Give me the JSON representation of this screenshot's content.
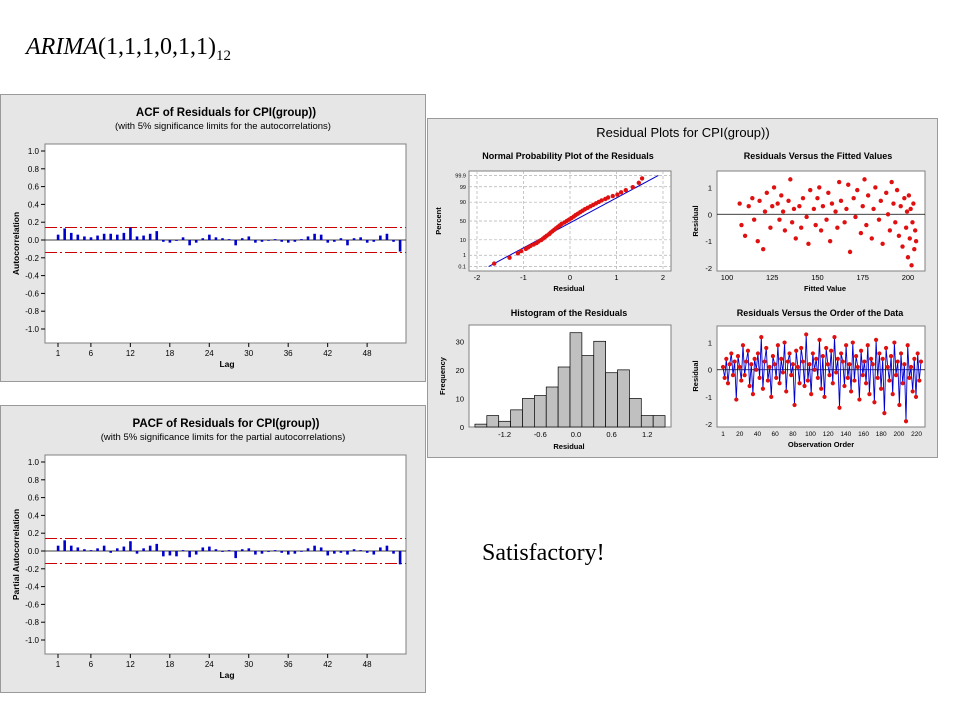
{
  "slide": {
    "title_main": "ARIMA",
    "title_args": "(1,1,1,0,1,1)",
    "title_sub": "12",
    "verdict": "Satisfactory!"
  },
  "colors": {
    "bar": "#0000cc",
    "limit": "#cc0000",
    "point": "#e01010",
    "line": "#0000cc",
    "hist": "#c0c0c0"
  },
  "chart_data": [
    {
      "id": "acf",
      "type": "bar",
      "title": "ACF of Residuals for CPI(group))",
      "subtitle": "(with 5% significance limits for the autocorrelations)",
      "xlabel": "Lag",
      "ylabel": "Autocorrelation",
      "ylim": [
        -1.0,
        1.0
      ],
      "yticks": [
        "1.0",
        "0.8",
        "0.6",
        "0.4",
        "0.2",
        "0.0",
        "-0.2",
        "-0.4",
        "-0.6",
        "-0.8",
        "-1.0"
      ],
      "xticks": [
        "1",
        "6",
        "12",
        "18",
        "24",
        "30",
        "36",
        "42",
        "48"
      ],
      "limit": 0.14,
      "lags": [
        1,
        2,
        3,
        4,
        5,
        6,
        7,
        8,
        9,
        10,
        11,
        12,
        13,
        14,
        15,
        16,
        17,
        18,
        19,
        20,
        21,
        22,
        23,
        24,
        25,
        26,
        27,
        28,
        29,
        30,
        31,
        32,
        33,
        34,
        35,
        36,
        37,
        38,
        39,
        40,
        41,
        42,
        43,
        44,
        45,
        46,
        47,
        48,
        49,
        50,
        51,
        52,
        53
      ],
      "values": [
        0.06,
        0.13,
        0.08,
        0.06,
        0.04,
        0.03,
        0.05,
        0.07,
        0.07,
        0.06,
        0.08,
        0.14,
        0.04,
        0.05,
        0.07,
        0.1,
        -0.02,
        -0.03,
        -0.01,
        0.03,
        -0.06,
        -0.03,
        0.02,
        0.06,
        0.03,
        0.02,
        0.01,
        -0.06,
        0.02,
        0.04,
        -0.03,
        -0.02,
        0.0,
        0.01,
        -0.02,
        -0.03,
        -0.02,
        0.01,
        0.04,
        0.07,
        0.06,
        -0.03,
        -0.02,
        0.02,
        -0.06,
        0.02,
        0.03,
        -0.03,
        -0.02,
        0.05,
        0.07,
        -0.02,
        -0.13
      ]
    },
    {
      "id": "pacf",
      "type": "bar",
      "title": "PACF of Residuals for CPI(group))",
      "subtitle": "(with 5% significance limits for the partial autocorrelations)",
      "xlabel": "Lag",
      "ylabel": "Partial Autocorrelation",
      "ylim": [
        -1.0,
        1.0
      ],
      "yticks": [
        "1.0",
        "0.8",
        "0.6",
        "0.4",
        "0.2",
        "0.0",
        "-0.2",
        "-0.4",
        "-0.6",
        "-0.8",
        "-1.0"
      ],
      "xticks": [
        "1",
        "6",
        "12",
        "18",
        "24",
        "30",
        "36",
        "42",
        "48"
      ],
      "limit": 0.14,
      "lags": [
        1,
        2,
        3,
        4,
        5,
        6,
        7,
        8,
        9,
        10,
        11,
        12,
        13,
        14,
        15,
        16,
        17,
        18,
        19,
        20,
        21,
        22,
        23,
        24,
        25,
        26,
        27,
        28,
        29,
        30,
        31,
        32,
        33,
        34,
        35,
        36,
        37,
        38,
        39,
        40,
        41,
        42,
        43,
        44,
        45,
        46,
        47,
        48,
        49,
        50,
        51,
        52,
        53
      ],
      "values": [
        0.06,
        0.12,
        0.06,
        0.04,
        0.02,
        0.01,
        0.03,
        0.06,
        -0.02,
        0.03,
        0.05,
        0.11,
        -0.03,
        0.03,
        0.06,
        0.08,
        -0.06,
        -0.05,
        -0.06,
        0.01,
        -0.07,
        -0.04,
        0.04,
        0.05,
        0.02,
        -0.01,
        0.01,
        -0.08,
        0.02,
        0.03,
        -0.04,
        -0.03,
        -0.01,
        0.01,
        -0.02,
        -0.04,
        -0.03,
        0.0,
        0.03,
        0.06,
        0.04,
        -0.05,
        -0.03,
        -0.02,
        -0.04,
        0.02,
        0.01,
        -0.02,
        -0.04,
        0.04,
        0.06,
        -0.03,
        -0.15
      ]
    },
    {
      "id": "normal-plot",
      "type": "scatter",
      "title": "Normal Probability Plot of the Residuals",
      "xlabel": "Residual",
      "ylabel": "Percent",
      "xlim": [
        -2,
        2
      ],
      "xticks": [
        "-2",
        "-1",
        "0",
        "1",
        "2"
      ],
      "yticks": [
        "99.9",
        "99",
        "90",
        "50",
        "10",
        "1",
        "0.1"
      ],
      "points": [
        [
          -1.63,
          -2.9
        ],
        [
          -1.3,
          -2.5
        ],
        [
          -1.12,
          -2.2
        ],
        [
          -1.05,
          -2.05
        ],
        [
          -0.95,
          -1.9
        ],
        [
          -0.9,
          -1.8
        ],
        [
          -0.85,
          -1.7
        ],
        [
          -0.78,
          -1.6
        ],
        [
          -0.72,
          -1.5
        ],
        [
          -0.68,
          -1.4
        ],
        [
          -0.62,
          -1.3
        ],
        [
          -0.58,
          -1.2
        ],
        [
          -0.54,
          -1.1
        ],
        [
          -0.5,
          -1.0
        ],
        [
          -0.45,
          -0.9
        ],
        [
          -0.42,
          -0.8
        ],
        [
          -0.38,
          -0.7
        ],
        [
          -0.34,
          -0.6
        ],
        [
          -0.3,
          -0.5
        ],
        [
          -0.26,
          -0.4
        ],
        [
          -0.22,
          -0.3
        ],
        [
          -0.18,
          -0.2
        ],
        [
          -0.12,
          -0.1
        ],
        [
          -0.07,
          0.0
        ],
        [
          -0.02,
          0.1
        ],
        [
          0.03,
          0.2
        ],
        [
          0.08,
          0.3
        ],
        [
          0.12,
          0.4
        ],
        [
          0.17,
          0.5
        ],
        [
          0.22,
          0.6
        ],
        [
          0.27,
          0.7
        ],
        [
          0.32,
          0.8
        ],
        [
          0.38,
          0.9
        ],
        [
          0.44,
          1.0
        ],
        [
          0.5,
          1.1
        ],
        [
          0.56,
          1.2
        ],
        [
          0.62,
          1.3
        ],
        [
          0.68,
          1.4
        ],
        [
          0.76,
          1.5
        ],
        [
          0.82,
          1.6
        ],
        [
          0.92,
          1.7
        ],
        [
          1.02,
          1.8
        ],
        [
          1.1,
          1.95
        ],
        [
          1.2,
          2.1
        ],
        [
          1.35,
          2.3
        ],
        [
          1.48,
          2.6
        ],
        [
          1.55,
          2.9
        ]
      ]
    },
    {
      "id": "resid-vs-fit",
      "type": "scatter",
      "title": "Residuals Versus the Fitted Values",
      "xlabel": "Fitted Value",
      "ylabel": "Residual",
      "xlim": [
        100,
        205
      ],
      "ylim": [
        -2,
        1.5
      ],
      "xticks": [
        "100",
        "125",
        "150",
        "175",
        "200"
      ],
      "yticks": [
        "1",
        "0",
        "-1",
        "-2"
      ],
      "points": [
        [
          107,
          0.4
        ],
        [
          108,
          -0.4
        ],
        [
          110,
          -0.8
        ],
        [
          112,
          0.3
        ],
        [
          114,
          0.6
        ],
        [
          115,
          -0.2
        ],
        [
          117,
          -1.0
        ],
        [
          118,
          0.5
        ],
        [
          120,
          -1.3
        ],
        [
          121,
          0.1
        ],
        [
          122,
          0.8
        ],
        [
          124,
          -0.5
        ],
        [
          125,
          0.3
        ],
        [
          126,
          1.0
        ],
        [
          128,
          0.4
        ],
        [
          129,
          -0.2
        ],
        [
          130,
          0.7
        ],
        [
          131,
          0.1
        ],
        [
          132,
          -0.6
        ],
        [
          134,
          0.5
        ],
        [
          135,
          1.3
        ],
        [
          136,
          -0.3
        ],
        [
          137,
          0.2
        ],
        [
          138,
          -0.9
        ],
        [
          140,
          0.3
        ],
        [
          141,
          -0.5
        ],
        [
          142,
          0.6
        ],
        [
          144,
          -0.1
        ],
        [
          145,
          -1.1
        ],
        [
          146,
          0.9
        ],
        [
          148,
          0.2
        ],
        [
          149,
          -0.4
        ],
        [
          150,
          0.6
        ],
        [
          151,
          1.0
        ],
        [
          152,
          -0.6
        ],
        [
          153,
          0.3
        ],
        [
          155,
          -0.2
        ],
        [
          156,
          0.8
        ],
        [
          157,
          -1.0
        ],
        [
          158,
          0.4
        ],
        [
          160,
          0.1
        ],
        [
          161,
          -0.5
        ],
        [
          162,
          1.2
        ],
        [
          163,
          0.5
        ],
        [
          165,
          -0.3
        ],
        [
          166,
          0.2
        ],
        [
          167,
          1.1
        ],
        [
          168,
          -1.4
        ],
        [
          170,
          0.6
        ],
        [
          171,
          -0.1
        ],
        [
          172,
          0.9
        ],
        [
          174,
          -0.7
        ],
        [
          175,
          0.3
        ],
        [
          176,
          1.3
        ],
        [
          177,
          -0.4
        ],
        [
          178,
          0.7
        ],
        [
          180,
          -0.9
        ],
        [
          181,
          0.2
        ],
        [
          182,
          1.0
        ],
        [
          184,
          -0.2
        ],
        [
          185,
          0.5
        ],
        [
          186,
          -1.1
        ],
        [
          188,
          0.8
        ],
        [
          189,
          0.0
        ],
        [
          190,
          -0.6
        ],
        [
          191,
          1.2
        ],
        [
          192,
          0.4
        ],
        [
          193,
          -0.3
        ],
        [
          194,
          0.9
        ],
        [
          195,
          -0.8
        ],
        [
          196,
          0.3
        ],
        [
          197,
          -1.2
        ],
        [
          198,
          0.6
        ],
        [
          199,
          -0.5
        ],
        [
          199.5,
          0.1
        ],
        [
          200,
          -1.6
        ],
        [
          200.5,
          0.7
        ],
        [
          201,
          -0.9
        ],
        [
          201.5,
          0.2
        ],
        [
          202,
          -1.9
        ],
        [
          202.5,
          -0.3
        ],
        [
          203,
          0.4
        ],
        [
          203.5,
          -1.3
        ],
        [
          204,
          -0.6
        ],
        [
          204.5,
          -1.0
        ]
      ]
    },
    {
      "id": "histogram",
      "type": "bar",
      "title": "Histogram of the Residuals",
      "xlabel": "Residual",
      "ylabel": "Frequency",
      "ylim": [
        0,
        35
      ],
      "xticks": [
        "-1.2",
        "-0.6",
        "0.0",
        "0.6",
        "1.2"
      ],
      "yticks": [
        "30",
        "20",
        "10",
        "0"
      ],
      "bin_width": 0.2,
      "bin_centers": [
        -1.6,
        -1.4,
        -1.2,
        -1.0,
        -0.8,
        -0.6,
        -0.4,
        -0.2,
        0.0,
        0.2,
        0.4,
        0.6,
        0.8,
        1.0,
        1.2,
        1.4
      ],
      "values": [
        1,
        4,
        2,
        6,
        10,
        11,
        14,
        21,
        33,
        25,
        30,
        19,
        20,
        10,
        4,
        4
      ]
    },
    {
      "id": "resid-vs-order",
      "type": "line",
      "title": "Residuals Versus the Order of the Data",
      "xlabel": "Observation Order",
      "ylabel": "Residual",
      "xlim": [
        1,
        225
      ],
      "ylim": [
        -2,
        1.5
      ],
      "xticks": [
        "1",
        "20",
        "40",
        "60",
        "80",
        "100",
        "120",
        "140",
        "160",
        "180",
        "200",
        "220"
      ],
      "yticks": [
        "1",
        "0",
        "-1",
        "-2"
      ],
      "values": [
        0.1,
        -0.3,
        0.4,
        -0.5,
        0.2,
        0.6,
        -0.2,
        0.3,
        -1.1,
        0.5,
        0.1,
        -0.4,
        0.9,
        -0.2,
        0.3,
        0.7,
        -0.6,
        0.2,
        -0.9,
        0.4,
        0.0,
        0.6,
        -0.3,
        1.2,
        -0.7,
        0.3,
        0.8,
        -0.4,
        0.1,
        -1.0,
        0.5,
        0.2,
        -0.3,
        0.9,
        -0.5,
        0.4,
        -0.1,
        1.0,
        -0.8,
        0.3,
        0.6,
        -0.2,
        0.2,
        -1.3,
        0.7,
        0.1,
        -0.5,
        0.8,
        0.3,
        -0.6,
        1.3,
        -0.4,
        0.2,
        -0.9,
        0.6,
        0.0,
        0.4,
        -0.3,
        1.1,
        -0.7,
        0.5,
        -1.0,
        0.8,
        0.2,
        -0.2,
        0.7,
        -0.5,
        1.2,
        -0.1,
        0.4,
        -1.4,
        0.6,
        0.3,
        -0.6,
        0.9,
        -0.3,
        0.2,
        -0.8,
        1.0,
        -0.4,
        0.5,
        0.1,
        -1.1,
        0.7,
        -0.2,
        0.3,
        -0.5,
        0.9,
        -0.9,
        0.4,
        0.2,
        -1.2,
        1.1,
        -0.3,
        0.6,
        -0.7,
        0.4,
        -1.6,
        0.8,
        0.1,
        -0.4,
        0.5,
        -0.9,
        1.0,
        -0.2,
        0.3,
        -1.3,
        0.6,
        -0.5,
        0.2,
        -1.9,
        0.9,
        -0.3,
        0.1,
        -0.8,
        0.4,
        -1.0,
        0.6,
        -0.4,
        0.3
      ]
    }
  ]
}
